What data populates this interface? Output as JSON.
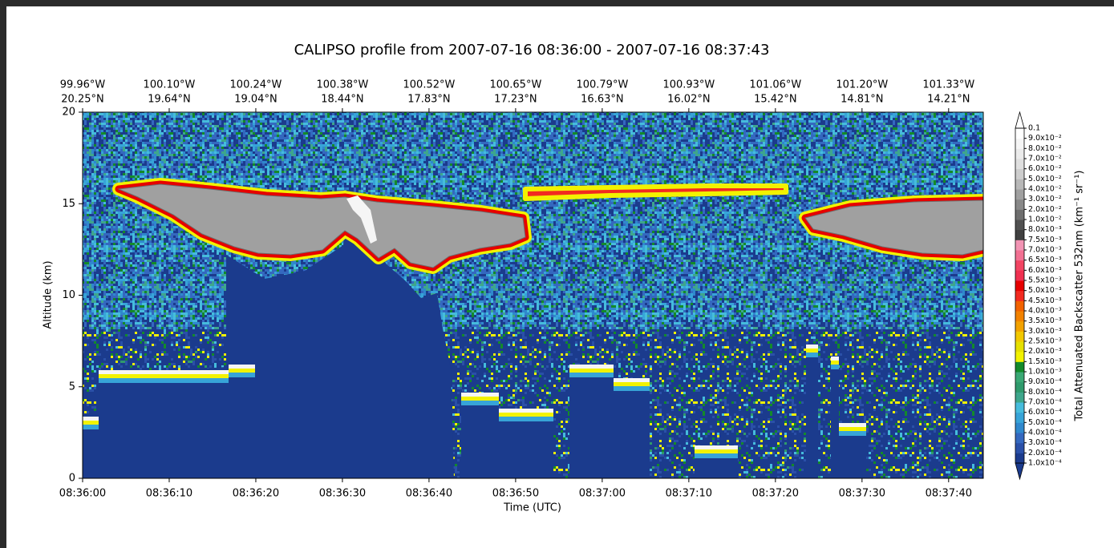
{
  "chart_data": {
    "type": "curtain",
    "title": "CALIPSO profile from 2007-07-16 08:36:00  -  2007-07-16 08:37:43",
    "xlabel": "Time (UTC)",
    "ylabel": "Altitude (km)",
    "xlim": [
      "08:36:00",
      "08:37:44"
    ],
    "xticks": [
      "08:36:00",
      "08:36:10",
      "08:36:20",
      "08:36:30",
      "08:36:40",
      "08:36:50",
      "08:37:00",
      "08:37:10",
      "08:37:20",
      "08:37:30",
      "08:37:40"
    ],
    "top_ticks": [
      {
        "lon": "99.96°W",
        "lat": "20.25°N"
      },
      {
        "lon": "100.10°W",
        "lat": "19.64°N"
      },
      {
        "lon": "100.24°W",
        "lat": "19.04°N"
      },
      {
        "lon": "100.38°W",
        "lat": "18.44°N"
      },
      {
        "lon": "100.52°W",
        "lat": "17.83°N"
      },
      {
        "lon": "100.65°W",
        "lat": "17.23°N"
      },
      {
        "lon": "100.79°W",
        "lat": "16.63°N"
      },
      {
        "lon": "100.93°W",
        "lat": "16.02°N"
      },
      {
        "lon": "101.06°W",
        "lat": "15.42°N"
      },
      {
        "lon": "101.20°W",
        "lat": "14.81°N"
      },
      {
        "lon": "101.33°W",
        "lat": "14.21°N"
      }
    ],
    "ylim": [
      0,
      20
    ],
    "yticks": [
      0,
      5,
      10,
      15,
      20
    ],
    "colorbar": {
      "label": "Total Attenuated Backscatter 532nm (km⁻¹ sr⁻¹)",
      "ticks": [
        {
          "value": 0.0001,
          "label": "1.0x10⁻⁴"
        },
        {
          "value": 0.0002,
          "label": "2.0x10⁻⁴"
        },
        {
          "value": 0.0003,
          "label": "3.0x10⁻⁴"
        },
        {
          "value": 0.0004,
          "label": "4.0x10⁻⁴"
        },
        {
          "value": 0.0005,
          "label": "5.0x10⁻⁴"
        },
        {
          "value": 0.0006,
          "label": "6.0x10⁻⁴"
        },
        {
          "value": 0.0007,
          "label": "7.0x10⁻⁴"
        },
        {
          "value": 0.0008,
          "label": "8.0x10⁻⁴"
        },
        {
          "value": 0.0009,
          "label": "9.0x10⁻⁴"
        },
        {
          "value": 0.001,
          "label": "1.0x10⁻³"
        },
        {
          "value": 0.0015,
          "label": "1.5x10⁻³"
        },
        {
          "value": 0.002,
          "label": "2.0x10⁻³"
        },
        {
          "value": 0.0025,
          "label": "2.5x10⁻³"
        },
        {
          "value": 0.003,
          "label": "3.0x10⁻³"
        },
        {
          "value": 0.0035,
          "label": "3.5x10⁻³"
        },
        {
          "value": 0.004,
          "label": "4.0x10⁻³"
        },
        {
          "value": 0.0045,
          "label": "4.5x10⁻³"
        },
        {
          "value": 0.005,
          "label": "5.0x10⁻³"
        },
        {
          "value": 0.0055,
          "label": "5.5x10⁻³"
        },
        {
          "value": 0.006,
          "label": "6.0x10⁻³"
        },
        {
          "value": 0.0065,
          "label": "6.5x10⁻³"
        },
        {
          "value": 0.007,
          "label": "7.0x10⁻³"
        },
        {
          "value": 0.0075,
          "label": "7.5x10⁻³"
        },
        {
          "value": 0.008,
          "label": "8.0x10⁻³"
        },
        {
          "value": 0.01,
          "label": "1.0x10⁻²"
        },
        {
          "value": 0.02,
          "label": "2.0x10⁻²"
        },
        {
          "value": 0.03,
          "label": "3.0x10⁻²"
        },
        {
          "value": 0.04,
          "label": "4.0x10⁻²"
        },
        {
          "value": 0.05,
          "label": "5.0x10⁻²"
        },
        {
          "value": 0.06,
          "label": "6.0x10⁻²"
        },
        {
          "value": 0.07,
          "label": "7.0x10⁻²"
        },
        {
          "value": 0.08,
          "label": "8.0x10⁻²"
        },
        {
          "value": 0.09,
          "label": "9.0x10⁻²"
        },
        0.1
      ],
      "colors": [
        "#1b3b8d",
        "#2a50a8",
        "#3468bf",
        "#2f88cd",
        "#37a4d8",
        "#46bcdc",
        "#3ea68c",
        "#2f9a6c",
        "#3aa874",
        "#138a2a",
        "#f2f200",
        "#e6e000",
        "#f2c800",
        "#f2a200",
        "#f28200",
        "#f26200",
        "#f22a20",
        "#e60000",
        "#f03050",
        "#f24462",
        "#f27092",
        "#f294b4",
        "#404040",
        "#505050",
        "#6e6e6e",
        "#888888",
        "#a0a0a0",
        "#b8b8b8",
        "#cdcdcd",
        "#dfdfdf",
        "#ebebeb",
        "#f5f5f5",
        "#ffffff"
      ],
      "under_color": "#1b3b8d",
      "over_color": "#ffffff"
    }
  }
}
